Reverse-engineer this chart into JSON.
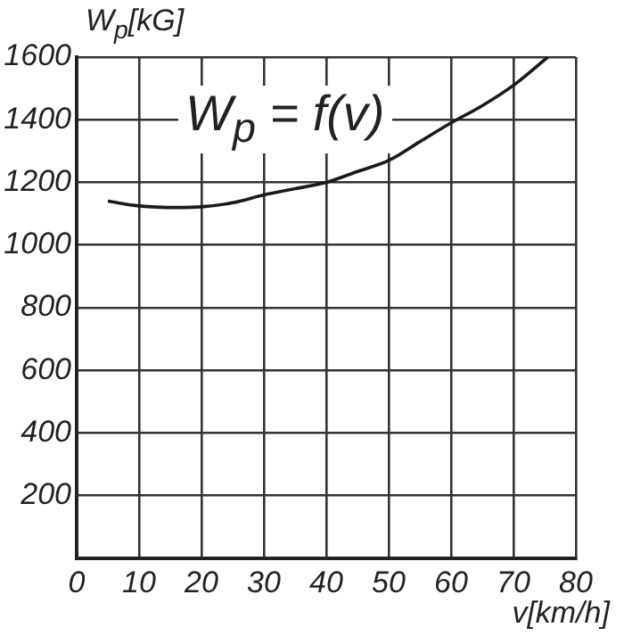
{
  "chart_data": {
    "type": "line",
    "xlabel": "v[km/h]",
    "ylabel": "W$_{p}$[kG]",
    "annotations": [
      "W$_{p}$ = f(v)"
    ],
    "x": [
      5,
      10,
      16,
      20,
      25,
      30,
      35,
      40,
      45,
      50,
      55,
      60,
      65,
      70,
      75.5
    ],
    "values": [
      1140,
      1125,
      1120,
      1122,
      1135,
      1160,
      1180,
      1200,
      1235,
      1270,
      1330,
      1390,
      1445,
      1510,
      1600
    ],
    "color": "#1a1a1a",
    "marker": "none",
    "line_style": "solid",
    "xlim": [
      0,
      80
    ],
    "xticks": [
      0,
      10,
      20,
      30,
      40,
      50,
      60,
      70,
      80
    ],
    "ylim": [
      0,
      1600
    ],
    "yticks": [
      {
        "value": 0,
        "label": null
      },
      200,
      400,
      600,
      800,
      1000,
      1200,
      1400,
      1600
    ],
    "grid": true
  }
}
